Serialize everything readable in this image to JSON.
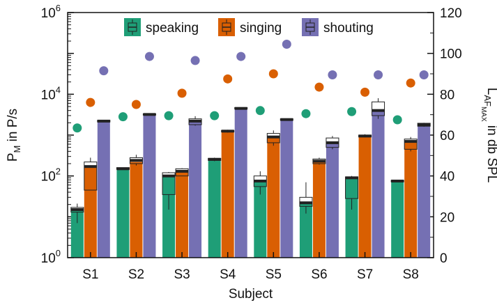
{
  "chart_data": {
    "type": "bar",
    "xlabel": "Subject",
    "ylabel_left": {
      "main": "P",
      "sub": "M",
      "rest": " in P/s"
    },
    "ylabel_right": {
      "main": "L",
      "sub": "AF",
      "subsub": "MAX",
      "rest": " in db SPL"
    },
    "categories": [
      "S1",
      "S2",
      "S3",
      "S4",
      "S5",
      "S6",
      "S7",
      "S8"
    ],
    "y_left": {
      "scale": "log",
      "ylim": [
        1,
        1000000
      ],
      "ticks": [
        {
          "value": 1,
          "base": "10",
          "exp": "0"
        },
        {
          "value": 100,
          "base": "10",
          "exp": "2"
        },
        {
          "value": 10000,
          "base": "10",
          "exp": "4"
        },
        {
          "value": 1000000,
          "base": "10",
          "exp": "6"
        }
      ]
    },
    "y_right": {
      "scale": "linear",
      "ylim": [
        0,
        120
      ],
      "ticks": [
        "0",
        "20",
        "40",
        "60",
        "80",
        "100",
        "120"
      ]
    },
    "series": [
      {
        "name": "speaking",
        "color": "#1f9e77",
        "values": [
          14,
          150,
          100,
          250,
          75,
          22,
          90,
          75
        ],
        "box": [
          {
            "q1": 13,
            "med": 15,
            "q3": 17,
            "wlo": 7,
            "whi": 21
          },
          {
            "q1": 145,
            "med": 150,
            "q3": 160,
            "wlo": 145,
            "whi": 160
          },
          {
            "q1": 35,
            "med": 100,
            "q3": 120,
            "wlo": 15,
            "whi": 125
          },
          {
            "q1": 240,
            "med": 255,
            "q3": 270,
            "wlo": 230,
            "whi": 280
          },
          {
            "q1": 55,
            "med": 75,
            "q3": 100,
            "wlo": 35,
            "whi": 130
          },
          {
            "q1": 18,
            "med": 22,
            "q3": 30,
            "wlo": 12,
            "whi": 70
          },
          {
            "q1": 28,
            "med": 90,
            "q3": 95,
            "wlo": 15,
            "whi": 100
          },
          {
            "q1": 72,
            "med": 75,
            "q3": 78,
            "wlo": 70,
            "whi": 80
          }
        ],
        "level_db": [
          63.5,
          69,
          69.5,
          69.5,
          72,
          70.5,
          71.5,
          67.5
        ]
      },
      {
        "name": "singing",
        "color": "#d95f02",
        "values": [
          170,
          220,
          130,
          1250,
          900,
          230,
          950,
          700
        ],
        "box": [
          {
            "q1": 45,
            "med": 170,
            "q3": 220,
            "wlo": 45,
            "whi": 280
          },
          {
            "q1": 200,
            "med": 240,
            "q3": 280,
            "wlo": 180,
            "whi": 330
          },
          {
            "q1": 100,
            "med": 130,
            "q3": 150,
            "wlo": 100,
            "whi": 155
          },
          {
            "q1": 1200,
            "med": 1250,
            "q3": 1300,
            "wlo": 1150,
            "whi": 1350
          },
          {
            "q1": 650,
            "med": 900,
            "q3": 1100,
            "wlo": 550,
            "whi": 1300
          },
          {
            "q1": 200,
            "med": 230,
            "q3": 260,
            "wlo": 190,
            "whi": 280
          },
          {
            "q1": 900,
            "med": 950,
            "q3": 1000,
            "wlo": 880,
            "whi": 1050
          },
          {
            "q1": 450,
            "med": 700,
            "q3": 800,
            "wlo": 400,
            "whi": 900
          }
        ],
        "level_db": [
          76,
          75,
          80.5,
          87.5,
          90,
          83.5,
          81,
          85.5
        ]
      },
      {
        "name": "shouting",
        "color": "#7570b3",
        "values": [
          2200,
          3200,
          2200,
          4500,
          2400,
          650,
          4000,
          1800
        ],
        "box": [
          {
            "q1": 2100,
            "med": 2200,
            "q3": 2300,
            "wlo": 2100,
            "whi": 2350
          },
          {
            "q1": 3100,
            "med": 3200,
            "q3": 3300,
            "wlo": 3100,
            "whi": 3400
          },
          {
            "q1": 1800,
            "med": 2200,
            "q3": 2500,
            "wlo": 1700,
            "whi": 2900
          },
          {
            "q1": 4400,
            "med": 4500,
            "q3": 4700,
            "wlo": 4300,
            "whi": 4800
          },
          {
            "q1": 2300,
            "med": 2400,
            "q3": 2500,
            "wlo": 2300,
            "whi": 2550
          },
          {
            "q1": 500,
            "med": 650,
            "q3": 850,
            "wlo": 450,
            "whi": 950
          },
          {
            "q1": 3000,
            "med": 4000,
            "q3": 6500,
            "wlo": 2500,
            "whi": 8000
          },
          {
            "q1": 1650,
            "med": 1800,
            "q3": 1950,
            "wlo": 1600,
            "whi": 2000
          }
        ],
        "level_db": [
          91.5,
          98.5,
          96.5,
          98.5,
          104.5,
          89.5,
          89.5,
          89.5
        ]
      }
    ],
    "legend": {
      "position": "top-center"
    },
    "grid": false
  }
}
